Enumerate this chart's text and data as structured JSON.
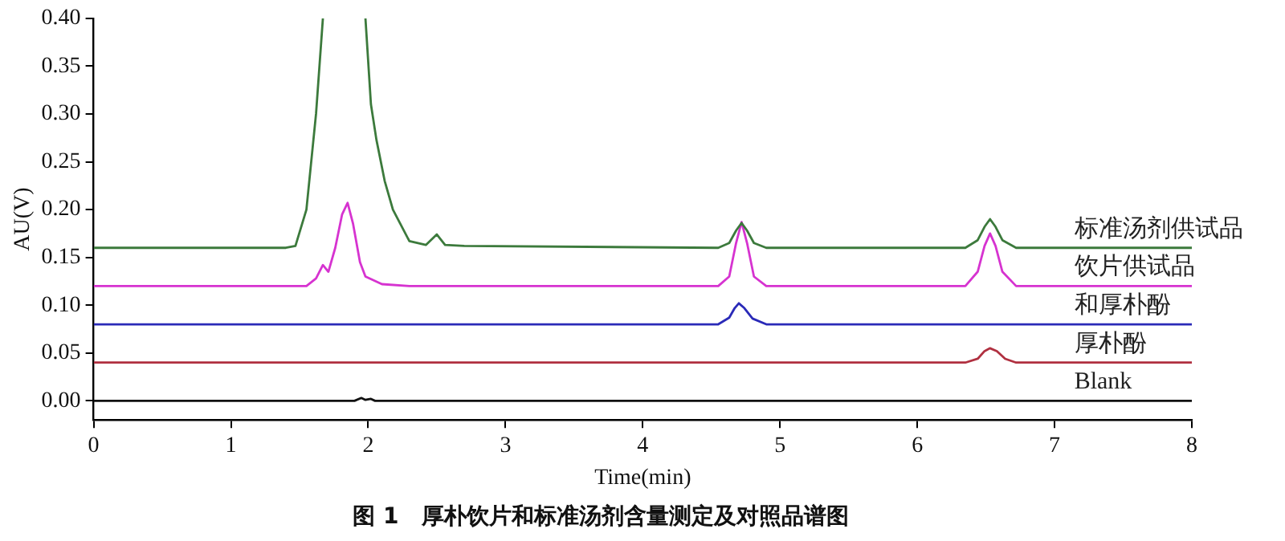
{
  "chart_data": {
    "type": "line",
    "title": "图 1　厚朴饮片和标准汤剂含量测定及对照品谱图",
    "xlabel": "Time(min)",
    "ylabel": "AU(V)",
    "marker": "none",
    "xlim": [
      0,
      8
    ],
    "xticks": [
      0,
      1,
      2,
      3,
      4,
      5,
      6,
      7,
      8
    ],
    "ylim": [
      -0.02,
      0.4
    ],
    "yticks": [
      {
        "value": 0,
        "label": "0.00"
      },
      {
        "value": 0.05,
        "label": "0.05"
      },
      {
        "value": 0.1,
        "label": "0.10"
      },
      {
        "value": 0.15,
        "label": "0.15"
      },
      {
        "value": 0.2,
        "label": "0.20"
      },
      {
        "value": 0.25,
        "label": "0.25"
      },
      {
        "value": 0.3,
        "label": "0.30"
      },
      {
        "value": 0.35,
        "label": "0.35"
      },
      {
        "value": 0.4,
        "label": "0.40"
      }
    ],
    "series": [
      {
        "name": "标准汤剂供试品",
        "color": "#3c7a3c",
        "x": [
          0,
          1.4,
          1.47,
          1.55,
          1.62,
          1.67,
          1.8,
          1.98,
          2.02,
          2.06,
          2.12,
          2.18,
          2.3,
          2.42,
          2.5,
          2.56,
          2.7,
          4.55,
          4.63,
          4.68,
          4.72,
          4.76,
          4.81,
          4.9,
          6.35,
          6.44,
          6.49,
          6.53,
          6.57,
          6.62,
          6.72,
          8
        ],
        "values": [
          0.16,
          0.16,
          0.162,
          0.2,
          0.3,
          0.4,
          null,
          0.4,
          0.31,
          0.273,
          0.23,
          0.2,
          0.167,
          0.163,
          0.174,
          0.163,
          0.162,
          0.16,
          0.165,
          0.178,
          0.186,
          0.178,
          0.165,
          0.16,
          0.16,
          0.168,
          0.182,
          0.19,
          0.182,
          0.168,
          0.16,
          0.16
        ]
      },
      {
        "name": "饮片供试品",
        "color": "#d633d0",
        "x": [
          0,
          1.55,
          1.62,
          1.67,
          1.71,
          1.76,
          1.81,
          1.85,
          1.89,
          1.94,
          1.98,
          2.1,
          2.3,
          4.55,
          4.63,
          4.68,
          4.72,
          4.76,
          4.81,
          4.9,
          6.35,
          6.44,
          6.49,
          6.53,
          6.57,
          6.62,
          6.72,
          8
        ],
        "values": [
          0.12,
          0.12,
          0.128,
          0.142,
          0.135,
          0.16,
          0.195,
          0.207,
          0.185,
          0.145,
          0.13,
          0.122,
          0.12,
          0.12,
          0.13,
          0.165,
          0.187,
          0.165,
          0.13,
          0.12,
          0.12,
          0.135,
          0.162,
          0.175,
          0.162,
          0.135,
          0.12,
          0.12
        ]
      },
      {
        "name": "和厚朴酚",
        "color": "#2a2ab8",
        "x": [
          0,
          4.55,
          4.63,
          4.67,
          4.7,
          4.74,
          4.8,
          4.9,
          8
        ],
        "values": [
          0.08,
          0.08,
          0.087,
          0.097,
          0.102,
          0.097,
          0.086,
          0.08,
          0.08
        ]
      },
      {
        "name": "厚朴酚",
        "color": "#b03040",
        "x": [
          0,
          6.35,
          6.44,
          6.49,
          6.53,
          6.58,
          6.64,
          6.72,
          8
        ],
        "values": [
          0.04,
          0.04,
          0.044,
          0.052,
          0.055,
          0.052,
          0.044,
          0.04,
          0.04
        ]
      },
      {
        "name": "Blank",
        "color": "#111111",
        "x": [
          0,
          1.9,
          1.95,
          1.98,
          2.02,
          2.05,
          2.1,
          8
        ],
        "values": [
          0,
          0,
          0.003,
          0.001,
          0.002,
          0,
          0,
          0
        ]
      }
    ]
  }
}
